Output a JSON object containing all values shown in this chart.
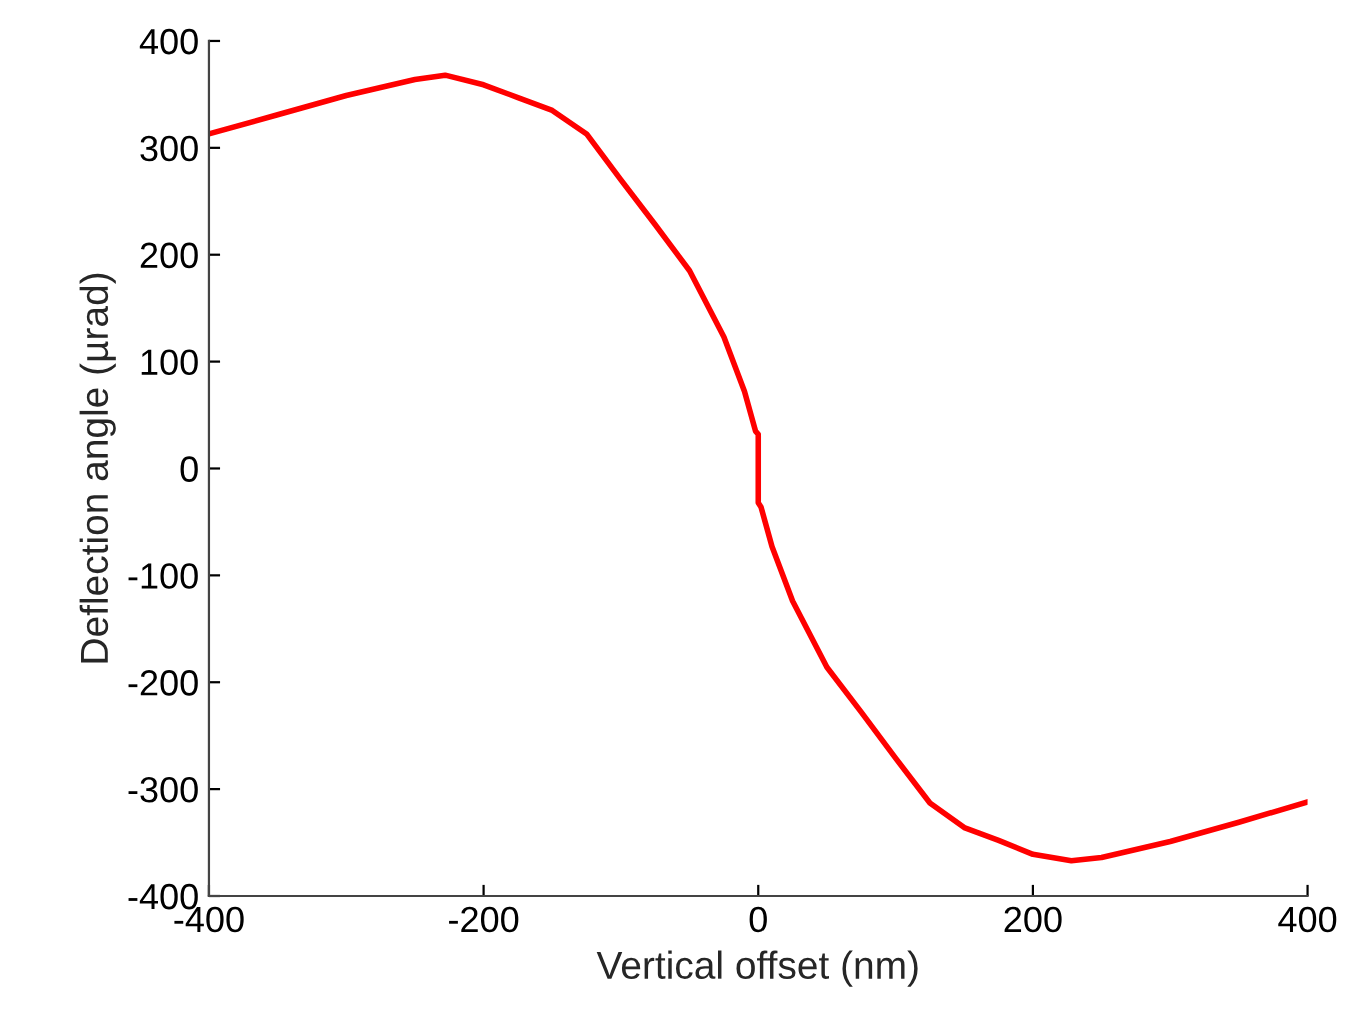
{
  "chart_data": {
    "type": "line",
    "xlabel": "Vertical offset (nm)",
    "ylabel": "Deflection angle (µrad)",
    "xlim": [
      -400,
      400
    ],
    "ylim": [
      -400,
      400
    ],
    "xticks": [
      -400,
      -200,
      0,
      200,
      400
    ],
    "yticks": [
      -400,
      -300,
      -200,
      -100,
      0,
      100,
      200,
      300,
      400
    ],
    "grid": false,
    "legend": false,
    "marker": "none",
    "line_style": "solid",
    "series": [
      {
        "color": "#ff0000",
        "x": [
          -400,
          -350,
          -300,
          -250,
          -228,
          -200,
          -175,
          -150,
          -125,
          -100,
          -75,
          -50,
          -25,
          -10,
          -2,
          0,
          0,
          2,
          10,
          25,
          50,
          75,
          100,
          125,
          150,
          175,
          200,
          228,
          250,
          300,
          350,
          400
        ],
        "values": [
          313,
          331,
          349,
          364,
          368,
          359,
          347,
          335,
          313,
          270,
          228,
          185,
          123,
          72,
          35,
          32,
          -32,
          -36,
          -73,
          -124,
          -186,
          -228,
          -271,
          -313,
          -336,
          -348,
          -361,
          -367,
          -364,
          -349,
          -331,
          -312
        ]
      }
    ]
  }
}
